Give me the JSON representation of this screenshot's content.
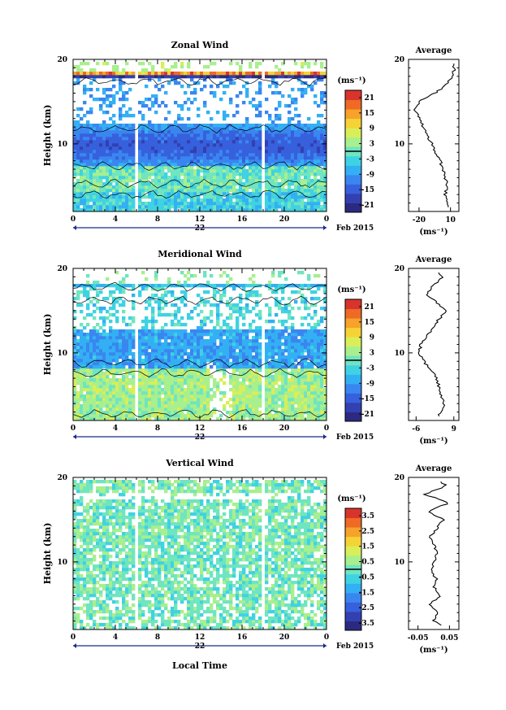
{
  "figure": {
    "xlabel": "Local Time",
    "date_label": "Feb 2015",
    "avg_title": "Average",
    "unit_label": "(ms⁻¹)",
    "ylabel": "Height (km)"
  },
  "chart_data": [
    {
      "type": "heatmap",
      "title": "Zonal Wind",
      "ylabel": "Height (km)",
      "ylim": [
        2,
        20
      ],
      "yticks": [
        10,
        20
      ],
      "xlim": [
        0,
        24
      ],
      "xticks": [
        "0",
        "4",
        "8",
        "12",
        "16",
        "20",
        "0"
      ],
      "day_label": "22",
      "colorbar": {
        "label": "(ms⁻¹)",
        "ticks": [
          "21",
          "15",
          "9",
          "3",
          "-3",
          "-9",
          "-15",
          "-21"
        ],
        "range": [
          -24,
          24
        ]
      },
      "data_gaps_hours": [
        [
          5.8,
          6.3
        ],
        [
          17.8,
          18.3
        ]
      ],
      "average_profile": {
        "title": "Average",
        "xticks": [
          "-20",
          "10"
        ],
        "xlim": [
          -30,
          18
        ],
        "xlabel": "(ms⁻¹)",
        "height_km": [
          2.5,
          3,
          4,
          5,
          6,
          7,
          8,
          9,
          10,
          11,
          12,
          13,
          14,
          15,
          16,
          17,
          18,
          19,
          19.5
        ],
        "value": [
          8,
          6,
          5,
          7,
          5,
          3,
          0,
          -4,
          -8,
          -12,
          -16,
          -20,
          -24,
          -20,
          -5,
          6,
          12,
          14,
          12
        ]
      }
    },
    {
      "type": "heatmap",
      "title": "Meridional Wind",
      "ylabel": "Height (km)",
      "ylim": [
        2,
        20
      ],
      "yticks": [
        10,
        20
      ],
      "xlim": [
        0,
        24
      ],
      "xticks": [
        "0",
        "4",
        "8",
        "12",
        "16",
        "20",
        "0"
      ],
      "day_label": "22",
      "colorbar": {
        "label": "(ms⁻¹)",
        "ticks": [
          "21",
          "15",
          "9",
          "3",
          "-3",
          "-9",
          "-15",
          "-21"
        ],
        "range": [
          -24,
          24
        ]
      },
      "data_gaps_hours": [
        [
          5.8,
          6.3
        ],
        [
          17.8,
          18.3
        ]
      ],
      "average_profile": {
        "title": "Average",
        "xticks": [
          "-6",
          "9"
        ],
        "xlim": [
          -9,
          11
        ],
        "xlabel": "(ms⁻¹)",
        "height_km": [
          2.5,
          3,
          4,
          5,
          6,
          7,
          8,
          9,
          10,
          11,
          12,
          13,
          14,
          15,
          16,
          17,
          18,
          19,
          19.5
        ],
        "value": [
          3,
          4,
          5,
          4,
          3,
          2,
          0,
          -3,
          -5,
          -4,
          -2,
          1,
          3,
          6,
          2,
          -2,
          1,
          5,
          3
        ]
      }
    },
    {
      "type": "heatmap",
      "title": "Vertical Wind",
      "ylabel": "Height (km)",
      "ylim": [
        2,
        20
      ],
      "yticks": [
        10,
        20
      ],
      "xlim": [
        0,
        24
      ],
      "xticks": [
        "0",
        "4",
        "8",
        "12",
        "16",
        "20",
        "0"
      ],
      "day_label": "22",
      "colorbar": {
        "label": "(ms⁻¹)",
        "ticks": [
          "3.5",
          "2.5",
          "1.5",
          "0.5",
          "-0.5",
          "-1.5",
          "-2.5",
          "-3.5"
        ],
        "range": [
          -4,
          4
        ]
      },
      "data_gaps_hours": [
        [
          5.8,
          6.3
        ],
        [
          17.8,
          18.3
        ]
      ],
      "average_profile": {
        "title": "Average",
        "xticks": [
          "-0.05",
          "0.05"
        ],
        "xlim": [
          -0.08,
          0.08
        ],
        "xlabel": "(ms⁻¹)",
        "height_km": [
          2.5,
          3,
          4,
          5,
          6,
          7,
          8,
          9,
          10,
          11,
          12,
          13,
          14,
          15,
          16,
          17,
          18,
          19,
          19.5
        ],
        "value": [
          0.02,
          0.0,
          0.01,
          -0.01,
          0.02,
          0.0,
          0.01,
          -0.01,
          0.0,
          0.01,
          0.0,
          -0.01,
          0.01,
          0.03,
          -0.02,
          0.05,
          -0.03,
          0.04,
          0.02
        ]
      }
    }
  ]
}
